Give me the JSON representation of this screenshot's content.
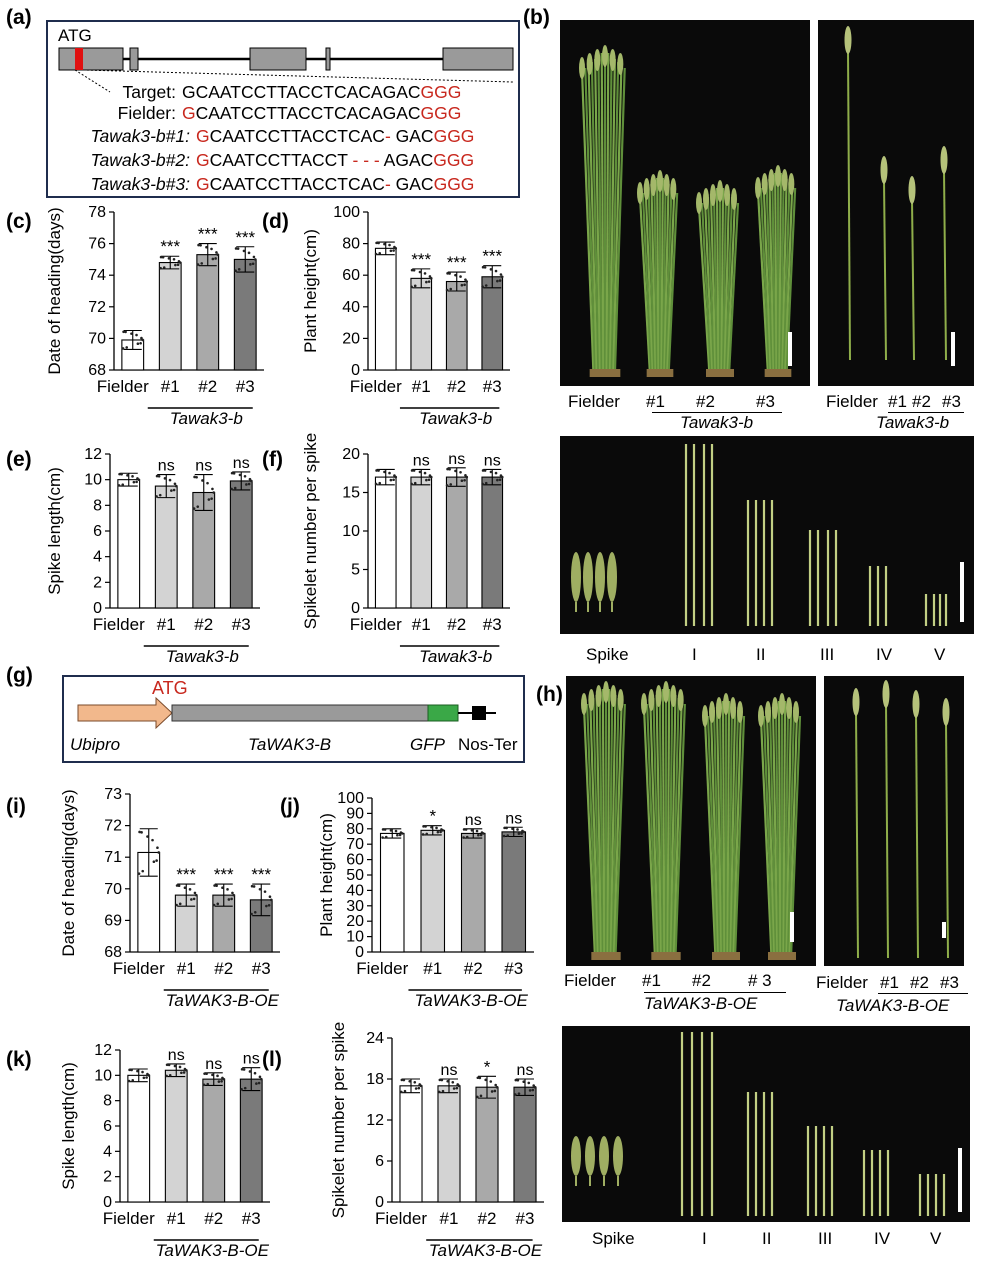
{
  "panel_labels": {
    "a": "(a)",
    "b": "(b)",
    "c": "(c)",
    "d": "(d)",
    "e": "(e)",
    "f": "(f)",
    "g": "(g)",
    "h": "(h)",
    "i": "(i)",
    "j": "(j)",
    "k": "(k)",
    "l": "(l)"
  },
  "gene_structure": {
    "start_label": "ATG",
    "sequences": [
      {
        "name": "Target:",
        "parts": [
          {
            "t": "GCAATCCTTACCTCACAGAC",
            "c": "k"
          },
          {
            "t": "GGG",
            "c": "r"
          }
        ]
      },
      {
        "name": "Fielder:",
        "parts": [
          {
            "t": "G",
            "c": "r"
          },
          {
            "t": "CAATCCTTACCTCACAGAC",
            "c": "k"
          },
          {
            "t": "GGG",
            "c": "r"
          }
        ]
      },
      {
        "name": "Tawak3-b#1:",
        "parts": [
          {
            "t": "G",
            "c": "r"
          },
          {
            "t": "CAATCCTTACCTCAC",
            "c": "k"
          },
          {
            "t": "-",
            "c": "r"
          },
          {
            "t": " GAC",
            "c": "k"
          },
          {
            "t": "GGG",
            "c": "r"
          }
        ]
      },
      {
        "name": "Tawak3-b#2:",
        "parts": [
          {
            "t": "G",
            "c": "r"
          },
          {
            "t": "CAATCCTTACCT ",
            "c": "k"
          },
          {
            "t": "- - -",
            "c": "r"
          },
          {
            "t": " AGAC",
            "c": "k"
          },
          {
            "t": "GGG",
            "c": "r"
          }
        ]
      },
      {
        "name": "Tawak3-b#3:",
        "parts": [
          {
            "t": "G",
            "c": "r"
          },
          {
            "t": "CAATCCTTACCTCAC",
            "c": "k"
          },
          {
            "t": "-",
            "c": "r"
          },
          {
            "t": " GAC",
            "c": "k"
          },
          {
            "t": "GGG",
            "c": "r"
          }
        ]
      }
    ]
  },
  "construct": {
    "start_label": "ATG",
    "promoter": "Ubipro",
    "gene": "TaWAK3-B",
    "tag": "GFP",
    "terminator": "Nos-Ter"
  },
  "photo_captions": {
    "b_plants": {
      "wt": "Fielder",
      "lines": [
        "#1",
        "#2",
        "#3"
      ],
      "group": "Tawak3-b"
    },
    "b_stems": {
      "wt": "Fielder",
      "lines": [
        "#1",
        "#2",
        "#3"
      ],
      "group": "Tawak3-b"
    },
    "b_internodes": [
      "Spike",
      "I",
      "II",
      "III",
      "IV",
      "V"
    ],
    "h_plants": {
      "wt": "Fielder",
      "lines": [
        "#1",
        "#2",
        "# 3"
      ],
      "group": "TaWAK3-B-OE"
    },
    "h_stems": {
      "wt": "Fielder",
      "lines": [
        "#1",
        "#2",
        "#3"
      ],
      "group": "TaWAK3-B-OE"
    },
    "h_internodes": [
      "Spike",
      "I",
      "II",
      "III",
      "IV",
      "V"
    ]
  },
  "chart_data": [
    {
      "id": "c",
      "type": "bar",
      "categories": [
        "Fielder",
        "#1",
        "#2",
        "#3"
      ],
      "group_label": "Tawak3-b",
      "ylabel": "Date of heading(days)",
      "ylim": [
        68,
        78
      ],
      "yticks": [
        68,
        70,
        72,
        74,
        76,
        78
      ],
      "values": [
        69.9,
        74.8,
        75.3,
        75.0
      ],
      "errors": [
        0.6,
        0.4,
        0.7,
        0.8
      ],
      "significance": [
        "",
        "***",
        "***",
        "***"
      ],
      "fills": [
        "#ffffff",
        "#d3d3d3",
        "#a9a9a9",
        "#7a7a7a"
      ]
    },
    {
      "id": "d",
      "type": "bar",
      "categories": [
        "Fielder",
        "#1",
        "#2",
        "#3"
      ],
      "group_label": "Tawak3-b",
      "ylabel": "Plant height(cm)",
      "ylim": [
        0,
        100
      ],
      "yticks": [
        0,
        20,
        40,
        60,
        80,
        100
      ],
      "values": [
        77,
        58,
        56,
        59
      ],
      "errors": [
        4,
        6,
        6,
        7
      ],
      "significance": [
        "",
        "***",
        "***",
        "***"
      ],
      "fills": [
        "#ffffff",
        "#d3d3d3",
        "#a9a9a9",
        "#7a7a7a"
      ]
    },
    {
      "id": "e",
      "type": "bar",
      "categories": [
        "Fielder",
        "#1",
        "#2",
        "#3"
      ],
      "group_label": "Tawak3-b",
      "ylabel": "Spike length(cm)",
      "ylim": [
        0,
        12
      ],
      "yticks": [
        0,
        2,
        4,
        6,
        8,
        10,
        12
      ],
      "values": [
        10.0,
        9.5,
        9.0,
        9.9
      ],
      "errors": [
        0.5,
        0.9,
        1.4,
        0.7
      ],
      "significance": [
        "",
        "ns",
        "ns",
        "ns"
      ],
      "fills": [
        "#ffffff",
        "#d3d3d3",
        "#a9a9a9",
        "#7a7a7a"
      ]
    },
    {
      "id": "f",
      "type": "bar",
      "categories": [
        "Fielder",
        "#1",
        "#2",
        "#3"
      ],
      "group_label": "Tawak3-b",
      "ylabel": "Spikelet number per spike",
      "ylim": [
        0,
        20
      ],
      "yticks": [
        0,
        5,
        10,
        15,
        20
      ],
      "values": [
        17,
        17,
        17,
        17
      ],
      "errors": [
        1,
        1,
        1.2,
        1
      ],
      "significance": [
        "",
        "ns",
        "ns",
        "ns"
      ],
      "fills": [
        "#ffffff",
        "#d3d3d3",
        "#a9a9a9",
        "#7a7a7a"
      ]
    },
    {
      "id": "i",
      "type": "bar",
      "categories": [
        "Fielder",
        "#1",
        "#2",
        "#3"
      ],
      "group_label": "TaWAK3-B-OE",
      "ylabel": "Date of heading(days)",
      "ylim": [
        68,
        73
      ],
      "yticks": [
        68,
        69,
        70,
        71,
        72,
        73
      ],
      "values": [
        71.15,
        69.8,
        69.8,
        69.65
      ],
      "errors": [
        0.75,
        0.35,
        0.35,
        0.5
      ],
      "significance": [
        "",
        "***",
        "***",
        "***"
      ],
      "fills": [
        "#ffffff",
        "#d3d3d3",
        "#a9a9a9",
        "#7a7a7a"
      ]
    },
    {
      "id": "j",
      "type": "bar",
      "categories": [
        "Fielder",
        "#1",
        "#2",
        "#3"
      ],
      "group_label": "TaWAK3-B-OE",
      "ylabel": "Plant height(cm)",
      "ylim": [
        0,
        100
      ],
      "yticks": [
        0,
        10,
        20,
        30,
        40,
        50,
        60,
        70,
        80,
        90,
        100
      ],
      "values": [
        77,
        79,
        77,
        78
      ],
      "errors": [
        3,
        3,
        3,
        3
      ],
      "significance": [
        "",
        "*",
        "ns",
        "ns"
      ],
      "fills": [
        "#ffffff",
        "#d3d3d3",
        "#a9a9a9",
        "#7a7a7a"
      ]
    },
    {
      "id": "k",
      "type": "bar",
      "categories": [
        "Fielder",
        "#1",
        "#2",
        "#3"
      ],
      "group_label": "TaWAK3-B-OE",
      "ylabel": "Spike length(cm)",
      "ylim": [
        0,
        12
      ],
      "yticks": [
        0,
        2,
        4,
        6,
        8,
        10,
        12
      ],
      "values": [
        10.0,
        10.4,
        9.7,
        9.7
      ],
      "errors": [
        0.5,
        0.5,
        0.5,
        0.9
      ],
      "significance": [
        "",
        "ns",
        "ns",
        "ns"
      ],
      "fills": [
        "#ffffff",
        "#d3d3d3",
        "#a9a9a9",
        "#7a7a7a"
      ]
    },
    {
      "id": "l",
      "type": "bar",
      "categories": [
        "Fielder",
        "#1",
        "#2",
        "#3"
      ],
      "group_label": "TaWAK3-B-OE",
      "ylabel": "Spikelet number per spike",
      "ylim": [
        0,
        24
      ],
      "yticks": [
        0,
        6,
        12,
        18,
        24
      ],
      "values": [
        17,
        17,
        16.8,
        16.8
      ],
      "errors": [
        1,
        1,
        1.6,
        1.2
      ],
      "significance": [
        "",
        "ns",
        "*",
        "ns"
      ],
      "fills": [
        "#ffffff",
        "#d3d3d3",
        "#a9a9a9",
        "#7a7a7a"
      ]
    }
  ]
}
